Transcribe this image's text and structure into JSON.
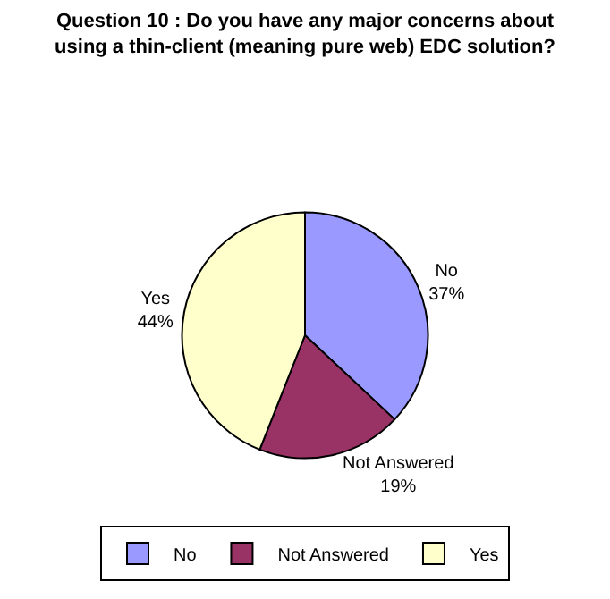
{
  "chart_data": {
    "type": "pie",
    "title": "Question 10 : Do you have any major concerns about using a thin-client (meaning pure web) EDC solution?",
    "categories": [
      "No",
      "Not Answered",
      "Yes"
    ],
    "values": [
      37,
      19,
      44
    ],
    "value_labels": [
      "37%",
      "19%",
      "44%"
    ],
    "colors": [
      "#9999ff",
      "#993366",
      "#ffffcc"
    ],
    "legend": "bottom"
  }
}
